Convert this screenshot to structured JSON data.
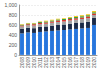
{
  "chart_data": {
    "type": "bar",
    "stacked": true,
    "grid": true,
    "categories": [
      "2008",
      "2009",
      "2010",
      "2011",
      "2012",
      "2013",
      "2014",
      "2015",
      "2016",
      "2017",
      "2018",
      "2019",
      "2020"
    ],
    "series": [
      {
        "color": "#2876dd",
        "values": [
          430,
          450,
          440,
          460,
          470,
          480,
          490,
          500,
          510,
          520,
          530,
          540,
          600
        ]
      },
      {
        "color": "#1b2a47",
        "values": [
          90,
          95,
          95,
          100,
          100,
          105,
          110,
          110,
          115,
          120,
          120,
          125,
          140
        ]
      },
      {
        "color": "#a3a3a3",
        "values": [
          50,
          50,
          55,
          55,
          55,
          60,
          60,
          60,
          65,
          65,
          70,
          70,
          60
        ]
      },
      {
        "color": "#d9332b",
        "values": [
          20,
          20,
          25,
          25,
          25,
          25,
          30,
          30,
          30,
          30,
          30,
          35,
          30
        ]
      },
      {
        "color": "#3a9c3a",
        "values": [
          15,
          15,
          15,
          20,
          20,
          20,
          20,
          20,
          25,
          25,
          25,
          25,
          25
        ]
      },
      {
        "color": "#f0c419",
        "values": [
          10,
          10,
          10,
          10,
          15,
          15,
          15,
          15,
          15,
          20,
          20,
          20,
          25
        ]
      }
    ],
    "ylim": [
      0,
      1000
    ],
    "yticks": [
      0,
      200,
      400,
      600,
      800,
      {
        "value": 1000,
        "label": "1,000"
      }
    ]
  }
}
